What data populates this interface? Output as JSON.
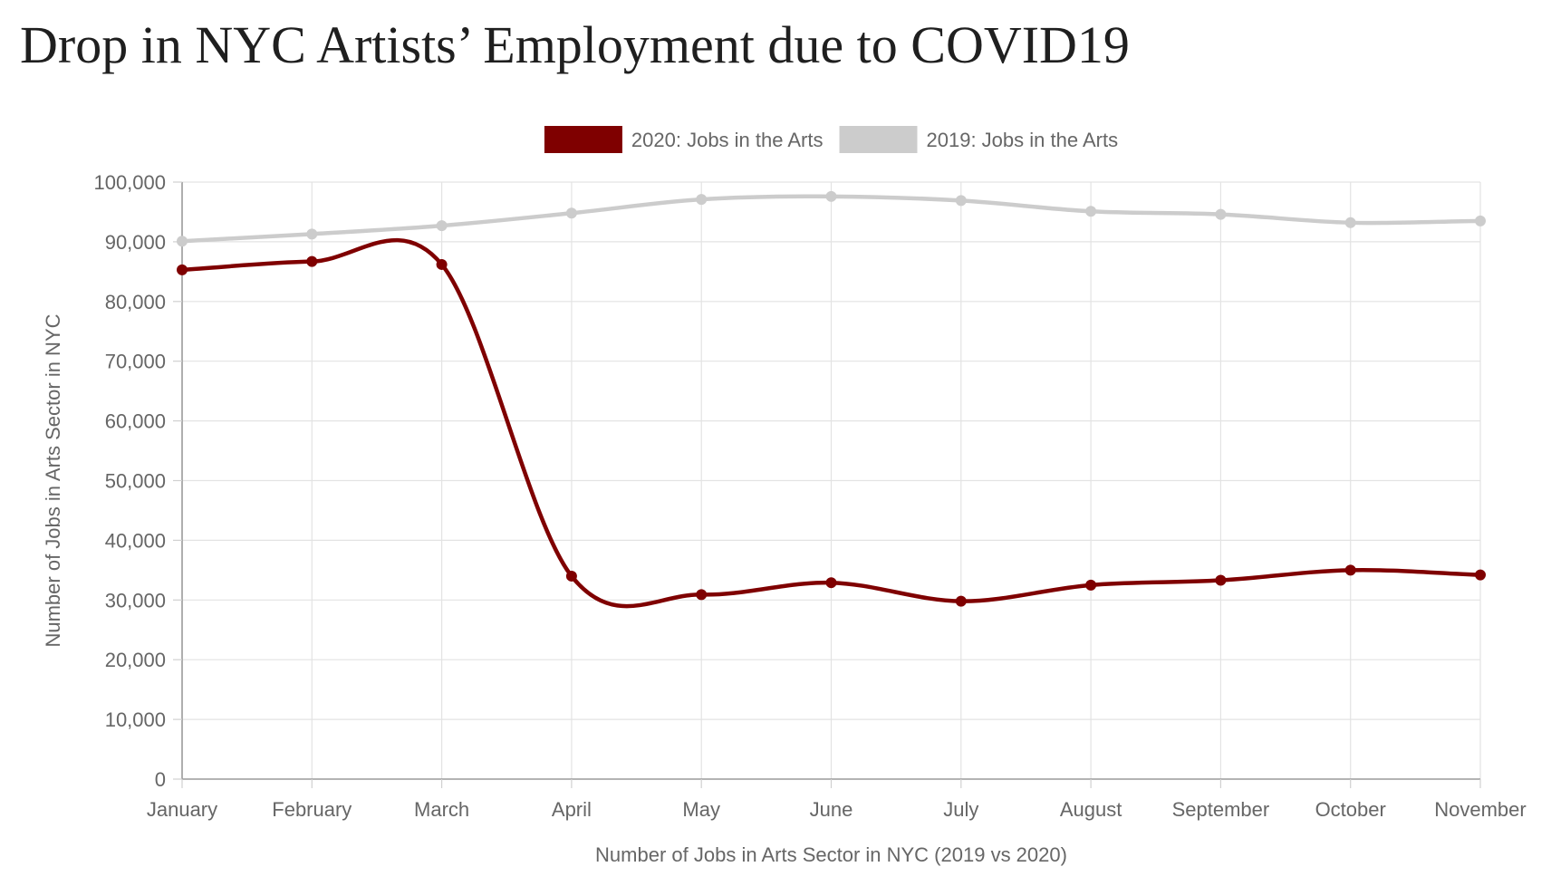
{
  "page": {
    "title": "Drop in NYC Artists’ Employment due to COVID19"
  },
  "chart_data": {
    "type": "line",
    "title": "Drop in NYC Artists’ Employment due to COVID19",
    "xlabel": "Number of Jobs in Arts Sector in NYC (2019 vs 2020)",
    "ylabel": "Number of Jobs in Arts Sector in NYC",
    "categories": [
      "January",
      "February",
      "March",
      "April",
      "May",
      "June",
      "July",
      "August",
      "September",
      "October",
      "November"
    ],
    "ylim": [
      0,
      100000
    ],
    "y_ticks": [
      0,
      10000,
      20000,
      30000,
      40000,
      50000,
      60000,
      70000,
      80000,
      90000,
      100000
    ],
    "y_tick_labels": [
      "0",
      "10,000",
      "20,000",
      "30,000",
      "40,000",
      "50,000",
      "60,000",
      "70,000",
      "80,000",
      "90,000",
      "100,000"
    ],
    "grid": true,
    "legend_position": "top-center",
    "series": [
      {
        "name": "2020: Jobs in the Arts",
        "color": "#7f0000",
        "values": [
          85300,
          86700,
          86200,
          34000,
          30900,
          32900,
          29800,
          32500,
          33300,
          35000,
          34200
        ]
      },
      {
        "name": "2019: Jobs in the Arts",
        "color": "#cccccc",
        "values": [
          90100,
          91300,
          92700,
          94800,
          97100,
          97600,
          96900,
          95100,
          94600,
          93200,
          93500
        ]
      }
    ]
  }
}
